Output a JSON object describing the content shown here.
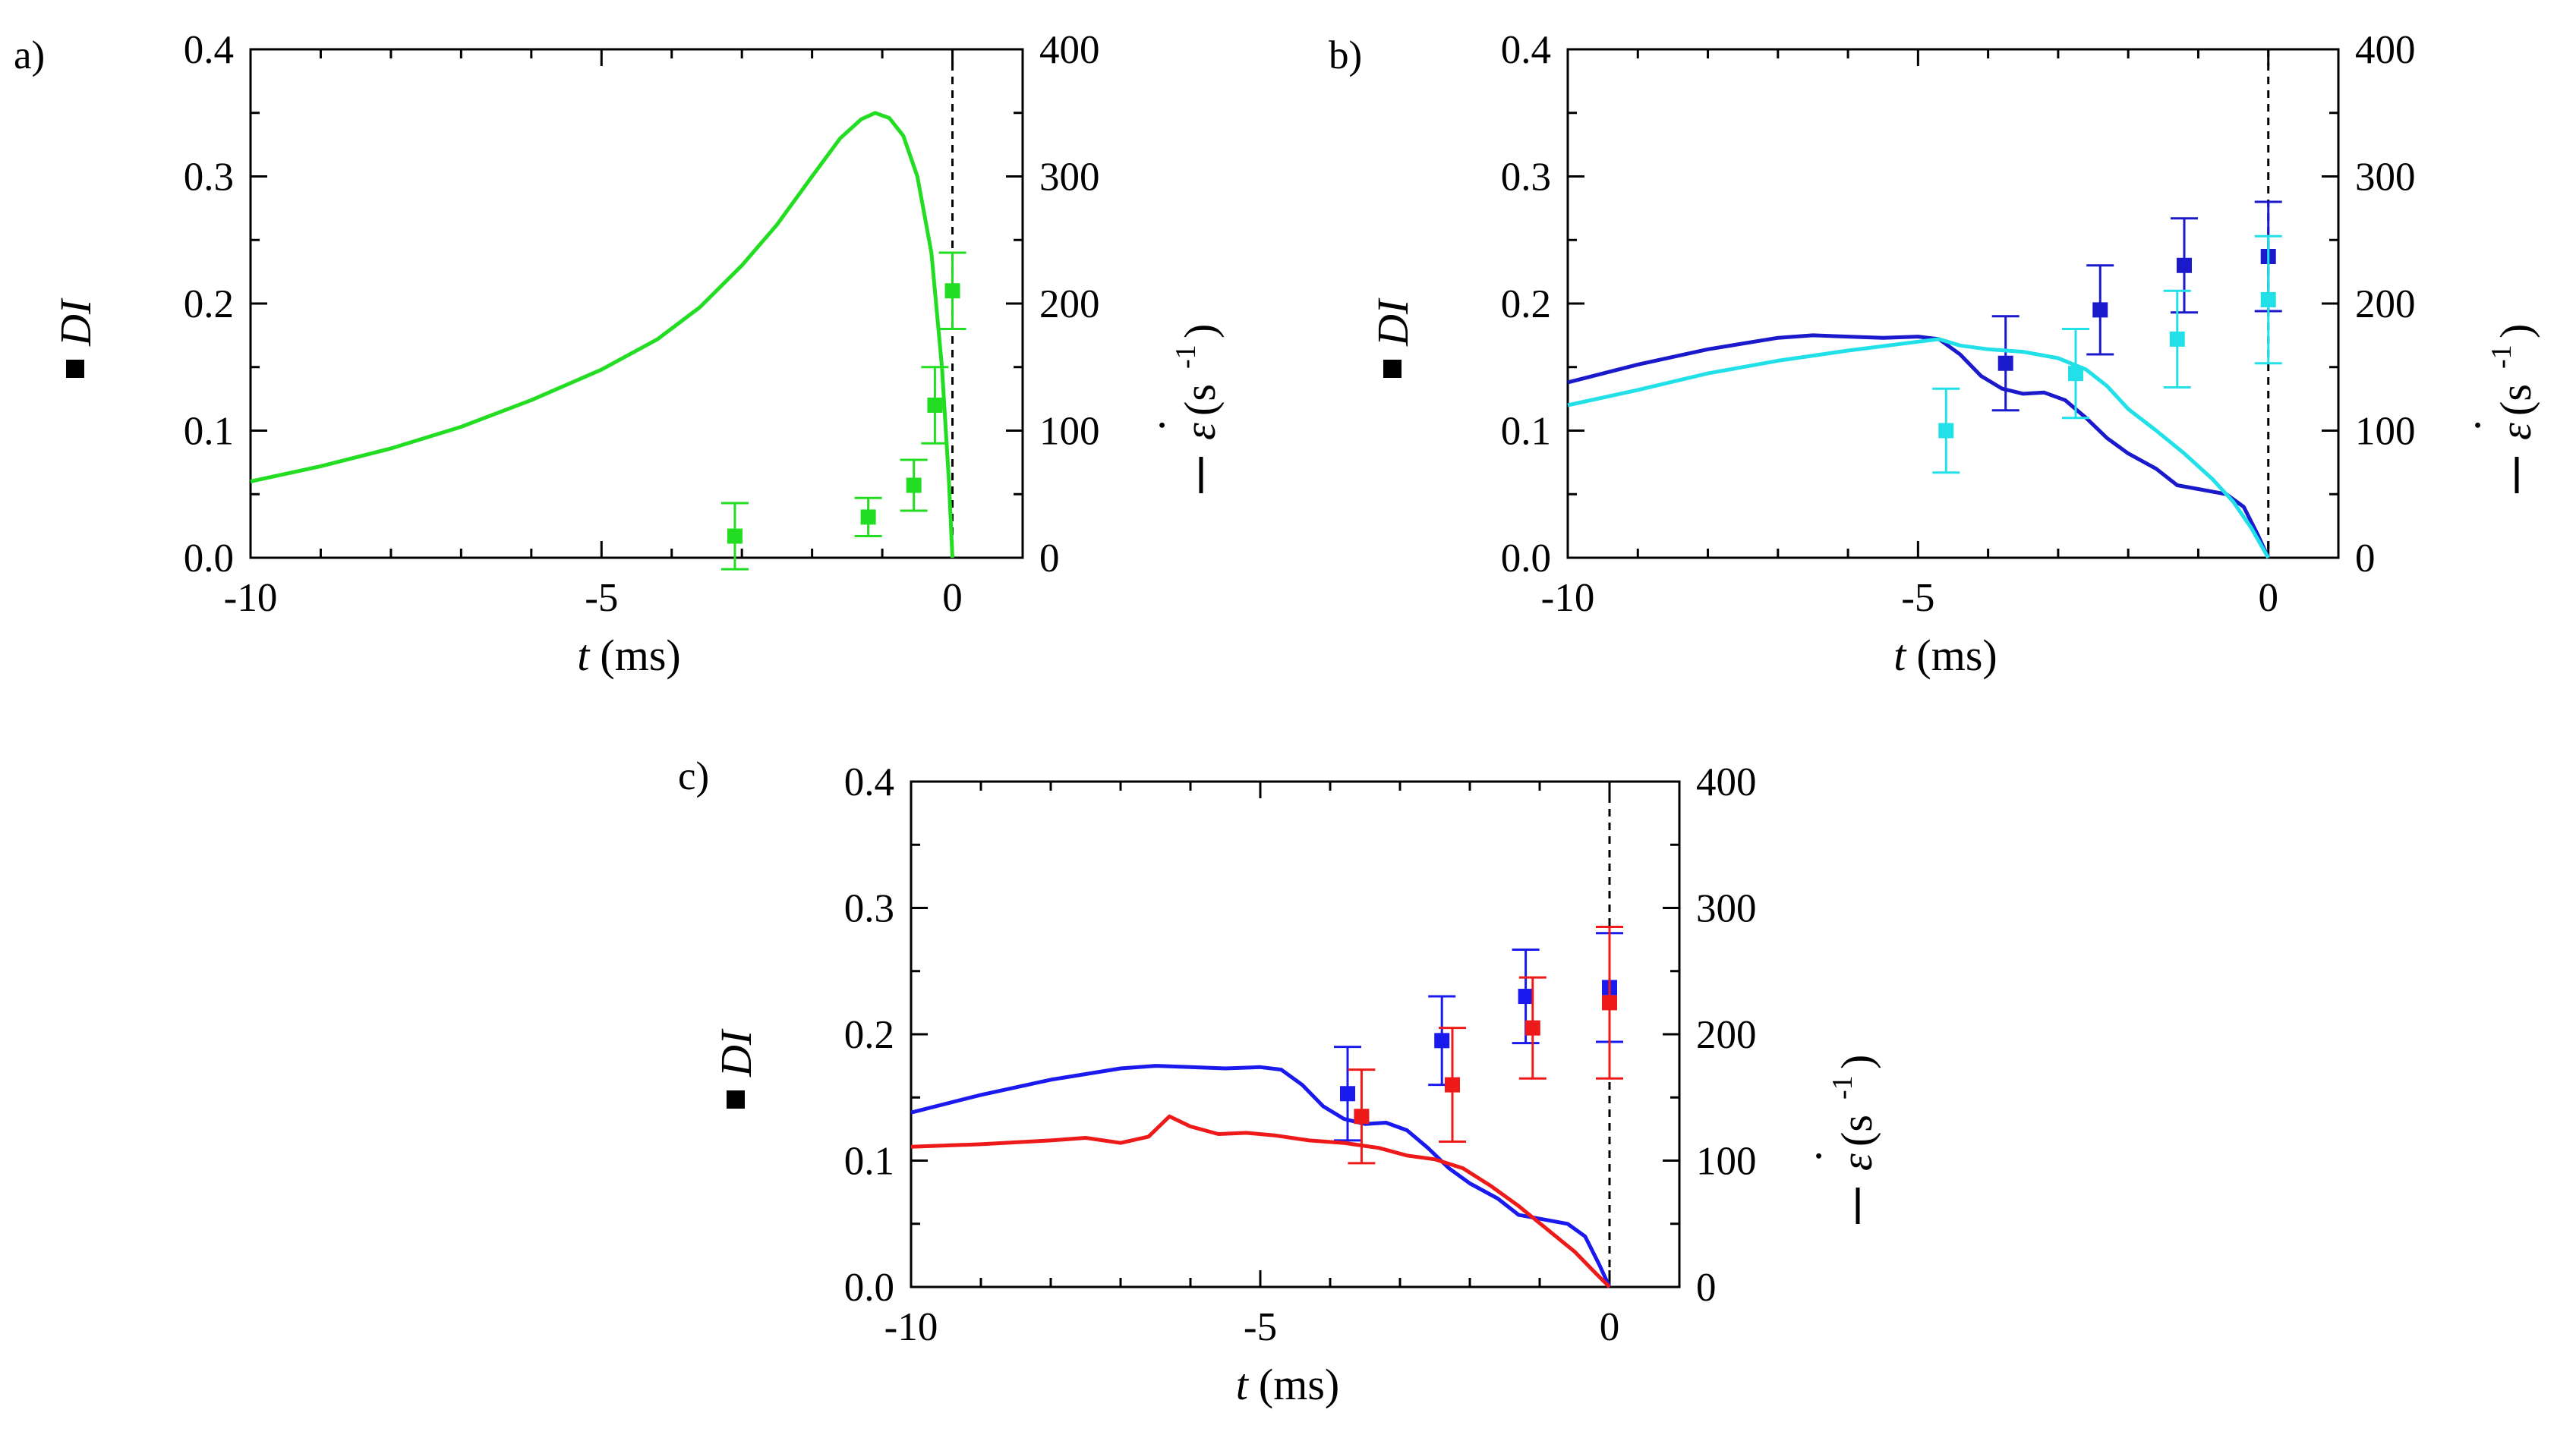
{
  "chart_data": [
    {
      "panel": "a)",
      "type": "line+scatter",
      "xlabel_var": "t",
      "xlabel_unit": "(ms)",
      "ylabel_left": "DI",
      "ylabel_right_sym": "ε",
      "ylabel_right_dot": "·",
      "ylabel_right_unit": "(s",
      "ylabel_right_exp": "-1",
      "ylabel_right_close": ")",
      "xlim": [
        -10,
        1
      ],
      "ylim_left": [
        0,
        0.4
      ],
      "ylim_right": [
        0,
        400
      ],
      "xticks": [
        -10,
        -5,
        0
      ],
      "xtick_labels": [
        "-10",
        "-5",
        "0"
      ],
      "yticks_left": [
        0,
        0.1,
        0.2,
        0.3,
        0.4
      ],
      "ytick_labels_left": [
        "0.0",
        "0.1",
        "0.2",
        "0.3",
        "0.4"
      ],
      "yticks_right": [
        0,
        100,
        200,
        300,
        400
      ],
      "ytick_labels_right": [
        "0",
        "100",
        "200",
        "300",
        "400"
      ],
      "vline_x": 0,
      "series": [
        {
          "name": "DI",
          "color": "#22dd22",
          "points": [
            {
              "x": -3.1,
              "y": 0.017,
              "err": 0.026
            },
            {
              "x": -1.2,
              "y": 0.032,
              "err": 0.015
            },
            {
              "x": -0.55,
              "y": 0.057,
              "err": 0.02
            },
            {
              "x": -0.25,
              "y": 0.12,
              "err": 0.03
            },
            {
              "x": 0.0,
              "y": 0.21,
              "err": 0.03
            }
          ],
          "line": [
            [
              -10,
              60
            ],
            [
              -9,
              72
            ],
            [
              -8,
              86
            ],
            [
              -7,
              103
            ],
            [
              -6,
              124
            ],
            [
              -5,
              148
            ],
            [
              -4.2,
              172
            ],
            [
              -3.6,
              197
            ],
            [
              -3,
              230
            ],
            [
              -2.5,
              262
            ],
            [
              -2,
              300
            ],
            [
              -1.6,
              330
            ],
            [
              -1.3,
              345
            ],
            [
              -1.1,
              350
            ],
            [
              -0.9,
              346
            ],
            [
              -0.7,
              332
            ],
            [
              -0.5,
              300
            ],
            [
              -0.3,
              240
            ],
            [
              -0.15,
              150
            ],
            [
              -0.05,
              60
            ],
            [
              0,
              0
            ]
          ]
        }
      ]
    },
    {
      "panel": "b)",
      "type": "line+scatter",
      "xlabel_var": "t",
      "xlabel_unit": "(ms)",
      "ylabel_left": "DI",
      "ylabel_right_sym": "ε",
      "ylabel_right_dot": "·",
      "ylabel_right_unit": "(s",
      "ylabel_right_exp": "-1",
      "ylabel_right_close": ")",
      "xlim": [
        -10,
        1
      ],
      "ylim_left": [
        0,
        0.4
      ],
      "ylim_right": [
        0,
        400
      ],
      "xticks": [
        -10,
        -5,
        0
      ],
      "xtick_labels": [
        "-10",
        "-5",
        "0"
      ],
      "yticks_left": [
        0,
        0.1,
        0.2,
        0.3,
        0.4
      ],
      "ytick_labels_left": [
        "0.0",
        "0.1",
        "0.2",
        "0.3",
        "0.4"
      ],
      "yticks_right": [
        0,
        100,
        200,
        300,
        400
      ],
      "ytick_labels_right": [
        "0",
        "100",
        "200",
        "300",
        "400"
      ],
      "vline_x": 0,
      "series": [
        {
          "name": "DI dark blue",
          "color": "#1a1acc",
          "points": [
            {
              "x": -3.75,
              "y": 0.153,
              "err": 0.037
            },
            {
              "x": -2.4,
              "y": 0.195,
              "err": 0.035
            },
            {
              "x": -1.2,
              "y": 0.23,
              "err": 0.037
            },
            {
              "x": 0.0,
              "y": 0.237,
              "err": 0.043
            }
          ],
          "line": [
            [
              -10,
              138
            ],
            [
              -9,
              152
            ],
            [
              -8,
              164
            ],
            [
              -7,
              173
            ],
            [
              -6.5,
              175
            ],
            [
              -6,
              174
            ],
            [
              -5.5,
              173
            ],
            [
              -5,
              174
            ],
            [
              -4.7,
              172
            ],
            [
              -4.4,
              160
            ],
            [
              -4.1,
              143
            ],
            [
              -3.8,
              133
            ],
            [
              -3.5,
              129
            ],
            [
              -3.2,
              130
            ],
            [
              -2.9,
              124
            ],
            [
              -2.6,
              110
            ],
            [
              -2.3,
              94
            ],
            [
              -2,
              82
            ],
            [
              -1.6,
              70
            ],
            [
              -1.3,
              57
            ],
            [
              -1,
              54
            ],
            [
              -0.6,
              50
            ],
            [
              -0.35,
              40
            ],
            [
              -0.15,
              18
            ],
            [
              0,
              0
            ]
          ]
        },
        {
          "name": "DI cyan",
          "color": "#22e0e8",
          "points": [
            {
              "x": -4.6,
              "y": 0.1,
              "err": 0.033
            },
            {
              "x": -2.75,
              "y": 0.145,
              "err": 0.035
            },
            {
              "x": -1.3,
              "y": 0.172,
              "err": 0.038
            },
            {
              "x": 0.0,
              "y": 0.203,
              "err": 0.05
            }
          ],
          "line": [
            [
              -10,
              120
            ],
            [
              -9,
              132
            ],
            [
              -8,
              145
            ],
            [
              -7,
              155
            ],
            [
              -6,
              163
            ],
            [
              -5,
              170
            ],
            [
              -4.7,
              172
            ],
            [
              -4.4,
              167
            ],
            [
              -4,
              164
            ],
            [
              -3.5,
              162
            ],
            [
              -3,
              157
            ],
            [
              -2.6,
              148
            ],
            [
              -2.3,
              135
            ],
            [
              -2,
              117
            ],
            [
              -1.6,
              100
            ],
            [
              -1.2,
              82
            ],
            [
              -0.8,
              62
            ],
            [
              -0.5,
              44
            ],
            [
              -0.25,
              24
            ],
            [
              0,
              0
            ]
          ]
        }
      ]
    },
    {
      "panel": "c)",
      "type": "line+scatter",
      "xlabel_var": "t",
      "xlabel_unit": "(ms)",
      "ylabel_left": "DI",
      "ylabel_right_sym": "ε",
      "ylabel_right_dot": "·",
      "ylabel_right_unit": "(s",
      "ylabel_right_exp": "-1",
      "ylabel_right_close": ")",
      "xlim": [
        -10,
        1
      ],
      "ylim_left": [
        0,
        0.4
      ],
      "ylim_right": [
        0,
        400
      ],
      "xticks": [
        -10,
        -5,
        0
      ],
      "xtick_labels": [
        "-10",
        "-5",
        "0"
      ],
      "yticks_left": [
        0,
        0.1,
        0.2,
        0.3,
        0.4
      ],
      "ytick_labels_left": [
        "0.0",
        "0.1",
        "0.2",
        "0.3",
        "0.4"
      ],
      "yticks_right": [
        0,
        100,
        200,
        300,
        400
      ],
      "ytick_labels_right": [
        "0",
        "100",
        "200",
        "300",
        "400"
      ],
      "vline_x": 0,
      "series": [
        {
          "name": "DI blue",
          "color": "#1a1aee",
          "points": [
            {
              "x": -3.75,
              "y": 0.153,
              "err": 0.037
            },
            {
              "x": -2.4,
              "y": 0.195,
              "err": 0.035
            },
            {
              "x": -1.2,
              "y": 0.23,
              "err": 0.037
            },
            {
              "x": 0.0,
              "y": 0.237,
              "err": 0.043
            }
          ],
          "line": [
            [
              -10,
              138
            ],
            [
              -9,
              152
            ],
            [
              -8,
              164
            ],
            [
              -7,
              173
            ],
            [
              -6.5,
              175
            ],
            [
              -6,
              174
            ],
            [
              -5.5,
              173
            ],
            [
              -5,
              174
            ],
            [
              -4.7,
              172
            ],
            [
              -4.4,
              160
            ],
            [
              -4.1,
              143
            ],
            [
              -3.8,
              133
            ],
            [
              -3.5,
              129
            ],
            [
              -3.2,
              130
            ],
            [
              -2.9,
              124
            ],
            [
              -2.6,
              110
            ],
            [
              -2.3,
              94
            ],
            [
              -2,
              82
            ],
            [
              -1.6,
              70
            ],
            [
              -1.3,
              57
            ],
            [
              -1,
              54
            ],
            [
              -0.6,
              50
            ],
            [
              -0.35,
              40
            ],
            [
              -0.15,
              18
            ],
            [
              0,
              0
            ]
          ]
        },
        {
          "name": "DI red",
          "color": "#ee1a1a",
          "points": [
            {
              "x": -3.55,
              "y": 0.135,
              "err": 0.037
            },
            {
              "x": -2.25,
              "y": 0.16,
              "err": 0.045
            },
            {
              "x": -1.1,
              "y": 0.205,
              "err": 0.04
            },
            {
              "x": 0.0,
              "y": 0.225,
              "err": 0.06
            }
          ],
          "line": [
            [
              -10,
              111
            ],
            [
              -9,
              113
            ],
            [
              -8,
              116
            ],
            [
              -7.5,
              118
            ],
            [
              -7,
              114
            ],
            [
              -6.6,
              119
            ],
            [
              -6.3,
              135
            ],
            [
              -6,
              127
            ],
            [
              -5.6,
              121
            ],
            [
              -5.2,
              122
            ],
            [
              -4.8,
              120
            ],
            [
              -4.3,
              116
            ],
            [
              -3.8,
              114
            ],
            [
              -3.3,
              110
            ],
            [
              -2.9,
              104
            ],
            [
              -2.5,
              101
            ],
            [
              -2.1,
              94
            ],
            [
              -1.7,
              80
            ],
            [
              -1.3,
              64
            ],
            [
              -0.9,
              46
            ],
            [
              -0.5,
              28
            ],
            [
              -0.2,
              11
            ],
            [
              0,
              0
            ]
          ]
        }
      ]
    }
  ]
}
